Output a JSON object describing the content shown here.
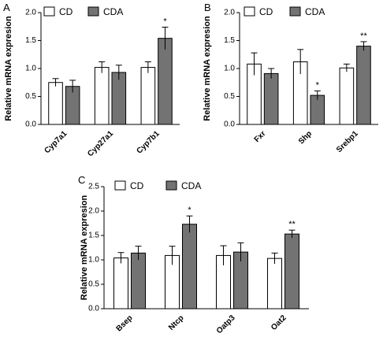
{
  "colors": {
    "cd_fill": "#ffffff",
    "cda_fill": "#737373",
    "stroke": "#000000"
  },
  "chart_data": [
    {
      "type": "bar",
      "panel": "A",
      "categories": [
        "Cyp7a1",
        "Cyp27a1",
        "Cyp7b1"
      ],
      "series": [
        {
          "name": "CD",
          "values": [
            0.75,
            1.02,
            1.02
          ],
          "errors": [
            0.07,
            0.1,
            0.1
          ]
        },
        {
          "name": "CDA",
          "values": [
            0.68,
            0.93,
            1.54
          ],
          "errors": [
            0.11,
            0.13,
            0.2
          ]
        }
      ],
      "significance": [
        {
          "category": "Cyp7b1",
          "series": "CDA",
          "label": "*"
        }
      ],
      "ylabel": "Relative mRNA expresion",
      "ylim": [
        0,
        2.0
      ],
      "yticks": [
        "0.0",
        "0.5",
        "1.0",
        "1.5",
        "2.0"
      ],
      "legend": "top"
    },
    {
      "type": "bar",
      "panel": "B",
      "categories": [
        "Fxr",
        "Shp",
        "Srebp1"
      ],
      "series": [
        {
          "name": "CD",
          "values": [
            1.08,
            1.12,
            1.01
          ],
          "errors": [
            0.2,
            0.22,
            0.07
          ]
        },
        {
          "name": "CDA",
          "values": [
            0.91,
            0.52,
            1.4
          ],
          "errors": [
            0.09,
            0.08,
            0.08
          ]
        }
      ],
      "significance": [
        {
          "category": "Shp",
          "series": "CDA",
          "label": "*"
        },
        {
          "category": "Srebp1",
          "series": "CDA",
          "label": "**"
        }
      ],
      "ylabel": "Relative mRNA expresion",
      "ylim": [
        0,
        2.0
      ],
      "yticks": [
        "0.0",
        "0.5",
        "1.0",
        "1.5",
        "2.0"
      ],
      "legend": "top"
    },
    {
      "type": "bar",
      "panel": "C",
      "categories": [
        "Bsep",
        "Ntcp",
        "Oatp3",
        "Oat2"
      ],
      "series": [
        {
          "name": "CD",
          "values": [
            1.04,
            1.09,
            1.09,
            1.03
          ],
          "errors": [
            0.11,
            0.19,
            0.2,
            0.11
          ]
        },
        {
          "name": "CDA",
          "values": [
            1.14,
            1.73,
            1.16,
            1.53
          ],
          "errors": [
            0.14,
            0.17,
            0.19,
            0.08
          ]
        }
      ],
      "significance": [
        {
          "category": "Ntcp",
          "series": "CDA",
          "label": "*"
        },
        {
          "category": "Oat2",
          "series": "CDA",
          "label": "**"
        }
      ],
      "ylabel": "Relative mRNA expresion",
      "ylim": [
        0,
        2.5
      ],
      "yticks": [
        "0.0",
        "0.5",
        "1.0",
        "1.5",
        "2.0",
        "2.5"
      ],
      "legend": "top"
    }
  ]
}
